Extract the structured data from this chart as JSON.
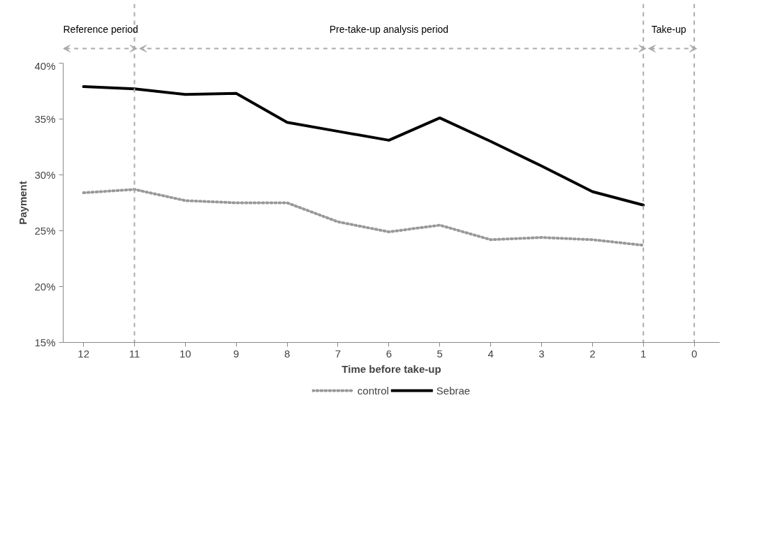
{
  "chart_data": {
    "type": "line",
    "xlabel": "Time before take-up",
    "ylabel": "Payment",
    "x": [
      12,
      11,
      10,
      9,
      8,
      7,
      6,
      5,
      4,
      3,
      2,
      1
    ],
    "xlim": [
      12.4,
      -0.5
    ],
    "xticks": [
      12,
      11,
      10,
      9,
      8,
      7,
      6,
      5,
      4,
      3,
      2,
      1,
      0
    ],
    "ylim": [
      15,
      40
    ],
    "yticks": [
      {
        "value": 15,
        "label": "15%"
      },
      {
        "value": 20,
        "label": "20%"
      },
      {
        "value": 25,
        "label": "25%"
      },
      {
        "value": 30,
        "label": "30%"
      },
      {
        "value": 35,
        "label": "35%"
      },
      {
        "value": 40,
        "label": "40%"
      }
    ],
    "series": [
      {
        "name": "control",
        "color": "#999999",
        "line_style": "dotted",
        "values": [
          28.4,
          28.7,
          27.7,
          27.5,
          27.5,
          25.8,
          24.9,
          25.5,
          24.2,
          24.4,
          24.2,
          23.7
        ]
      },
      {
        "name": "Sebrae",
        "color": "#000000",
        "line_style": "solid",
        "values": [
          37.9,
          37.7,
          37.2,
          37.3,
          34.7,
          33.9,
          33.1,
          35.1,
          33.0,
          30.8,
          28.5,
          27.3
        ]
      }
    ],
    "ref_lines": [
      {
        "axis": "x",
        "value": 11,
        "color": "#aaaaaa",
        "line_style": "dashed"
      },
      {
        "axis": "x",
        "value": 1,
        "color": "#aaaaaa",
        "line_style": "dashed"
      },
      {
        "axis": "x",
        "value": 0,
        "color": "#aaaaaa",
        "line_style": "dashed"
      }
    ],
    "annotations": [
      "Reference period",
      "Pre-take-up analysis period",
      "Take-up"
    ],
    "grid": false,
    "legend": "bottom",
    "marker": "none"
  }
}
